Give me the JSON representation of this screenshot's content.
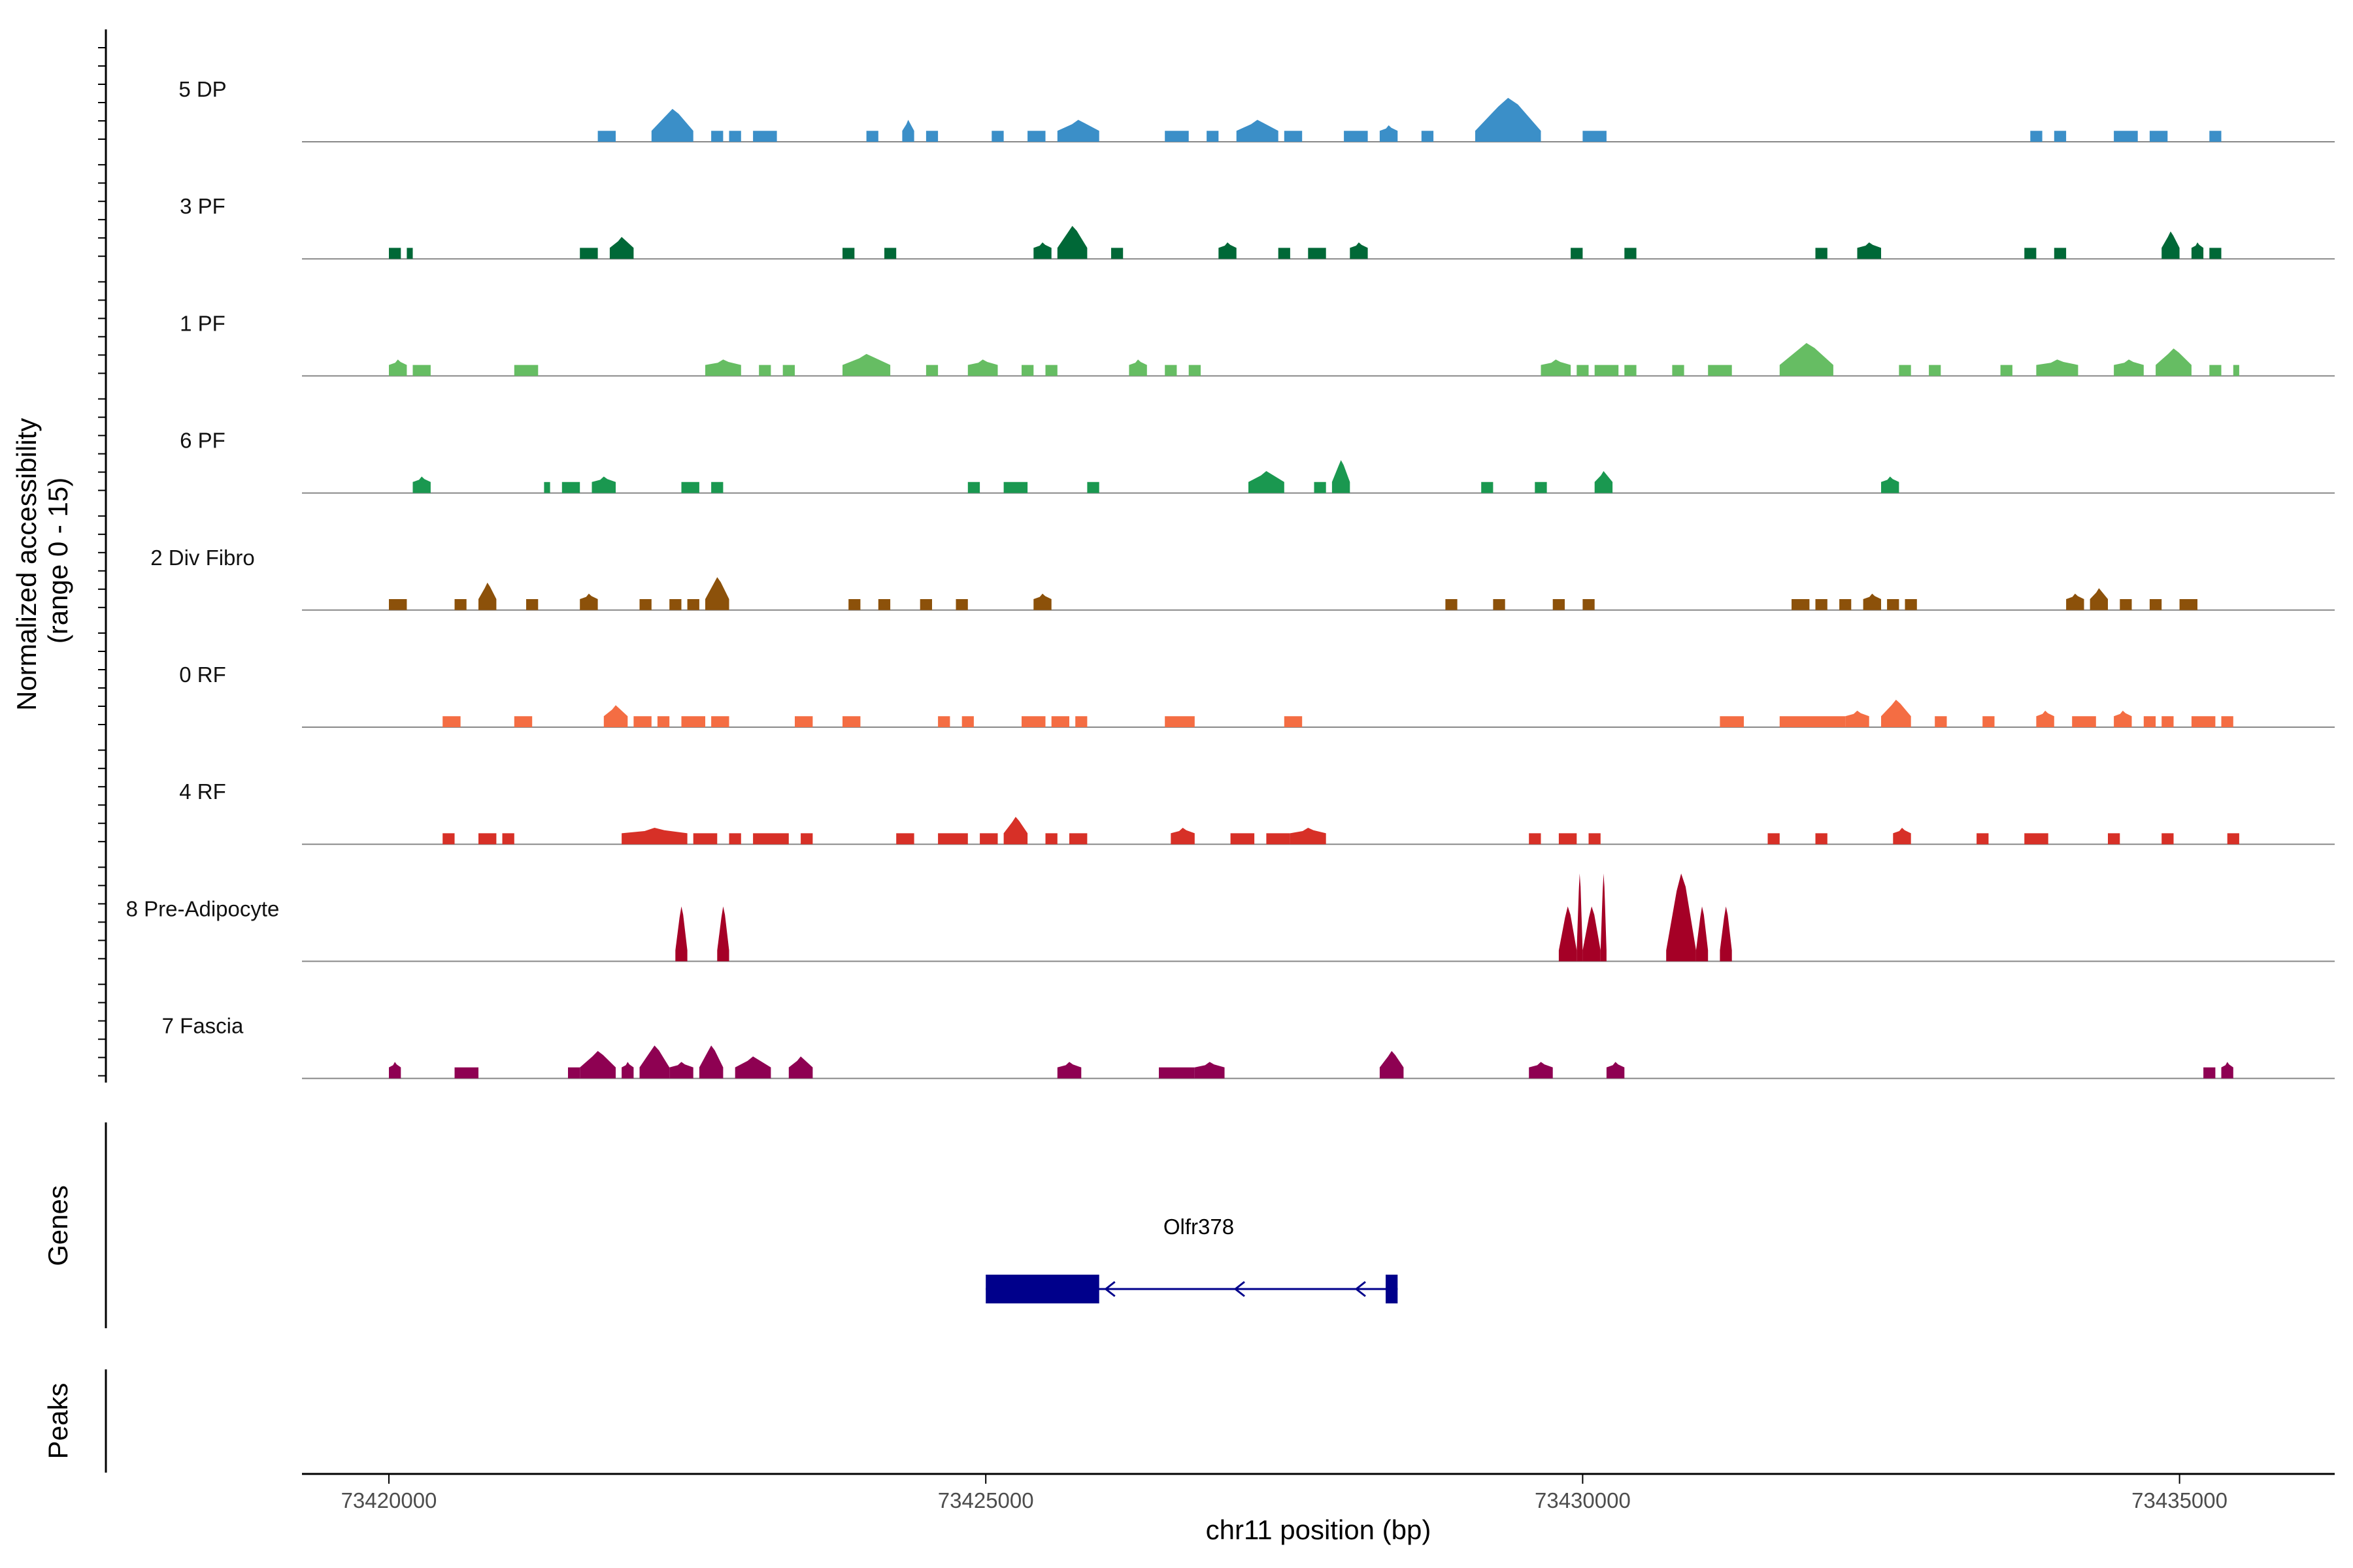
{
  "chart_data": {
    "type": "area",
    "title": "",
    "ylabel": "Normalized accessibility\n(range 0 - 15)",
    "y_range": [
      0,
      15
    ],
    "xlabel": "chr11 position (bp)",
    "xlim": [
      73418500,
      73436500
    ],
    "x_ticks": [
      73420000,
      73425000,
      73430000,
      73435000
    ],
    "x_tick_labels": [
      "73420000",
      "73425000",
      "73430000",
      "73435000"
    ],
    "series": [
      {
        "name": "5 DP",
        "color": "#3B8FC8",
        "peaks": [
          [
            73421750,
            73421900,
            2
          ],
          [
            73422200,
            73422550,
            6
          ],
          [
            73422700,
            73422800,
            2
          ],
          [
            73422850,
            73422950,
            2
          ],
          [
            73423050,
            73423250,
            2
          ],
          [
            73424000,
            73424100,
            2
          ],
          [
            73424300,
            73424400,
            4
          ],
          [
            73424500,
            73424600,
            2
          ],
          [
            73425050,
            73425150,
            2
          ],
          [
            73425350,
            73425500,
            2
          ],
          [
            73425600,
            73425950,
            4
          ],
          [
            73426500,
            73426700,
            2
          ],
          [
            73426850,
            73426950,
            2
          ],
          [
            73427100,
            73427450,
            4
          ],
          [
            73427500,
            73427650,
            2
          ],
          [
            73428000,
            73428200,
            2
          ],
          [
            73428300,
            73428450,
            3
          ],
          [
            73428650,
            73428750,
            2
          ],
          [
            73429100,
            73429650,
            8
          ],
          [
            73430000,
            73430200,
            2
          ],
          [
            73433750,
            73433850,
            2
          ],
          [
            73433950,
            73434050,
            2
          ],
          [
            73434450,
            73434650,
            2
          ],
          [
            73434750,
            73434900,
            2
          ],
          [
            73435250,
            73435350,
            2
          ]
        ]
      },
      {
        "name": "3 PF",
        "color": "#006837",
        "peaks": [
          [
            73420000,
            73420100,
            2
          ],
          [
            73420150,
            73420200,
            2
          ],
          [
            73421600,
            73421750,
            2
          ],
          [
            73421850,
            73422050,
            4
          ],
          [
            73423800,
            73423900,
            2
          ],
          [
            73424150,
            73424250,
            2
          ],
          [
            73425400,
            73425550,
            3
          ],
          [
            73425600,
            73425850,
            6
          ],
          [
            73426050,
            73426150,
            2
          ],
          [
            73426950,
            73427100,
            3
          ],
          [
            73427450,
            73427550,
            2
          ],
          [
            73427700,
            73427850,
            2
          ],
          [
            73428050,
            73428200,
            3
          ],
          [
            73429900,
            73430000,
            2
          ],
          [
            73430350,
            73430450,
            2
          ],
          [
            73431950,
            73432050,
            2
          ],
          [
            73432300,
            73432500,
            3
          ],
          [
            73433700,
            73433800,
            2
          ],
          [
            73433950,
            73434050,
            2
          ],
          [
            73434850,
            73435000,
            5
          ],
          [
            73435100,
            73435200,
            3
          ],
          [
            73435250,
            73435350,
            2
          ]
        ]
      },
      {
        "name": "1 PF",
        "color": "#66BD63",
        "peaks": [
          [
            73420000,
            73420150,
            3
          ],
          [
            73420200,
            73420350,
            2
          ],
          [
            73421050,
            73421250,
            2
          ],
          [
            73422650,
            73422950,
            3
          ],
          [
            73423100,
            73423200,
            2
          ],
          [
            73423300,
            73423400,
            2
          ],
          [
            73423800,
            73424200,
            4
          ],
          [
            73424500,
            73424600,
            2
          ],
          [
            73424850,
            73425100,
            3
          ],
          [
            73425300,
            73425400,
            2
          ],
          [
            73425500,
            73425600,
            2
          ],
          [
            73426200,
            73426350,
            3
          ],
          [
            73426500,
            73426600,
            2
          ],
          [
            73426700,
            73426800,
            2
          ],
          [
            73429650,
            73429900,
            3
          ],
          [
            73429950,
            73430050,
            2
          ],
          [
            73430100,
            73430300,
            2
          ],
          [
            73430350,
            73430450,
            2
          ],
          [
            73430750,
            73430850,
            2
          ],
          [
            73431050,
            73431250,
            2
          ],
          [
            73431650,
            73432100,
            6
          ],
          [
            73432650,
            73432750,
            2
          ],
          [
            73432900,
            73433000,
            2
          ],
          [
            73433500,
            73433600,
            2
          ],
          [
            73433800,
            73434150,
            3
          ],
          [
            73434450,
            73434700,
            3
          ],
          [
            73434800,
            73435100,
            5
          ],
          [
            73435250,
            73435350,
            2
          ],
          [
            73435450,
            73435500,
            2
          ]
        ]
      },
      {
        "name": "6 PF",
        "color": "#1A9850",
        "peaks": [
          [
            73420200,
            73420350,
            3
          ],
          [
            73421300,
            73421350,
            2
          ],
          [
            73421450,
            73421600,
            2
          ],
          [
            73421700,
            73421900,
            3
          ],
          [
            73422450,
            73422600,
            2
          ],
          [
            73422700,
            73422800,
            2
          ],
          [
            73424850,
            73424950,
            2
          ],
          [
            73425150,
            73425350,
            2
          ],
          [
            73425850,
            73425950,
            2
          ],
          [
            73427200,
            73427500,
            4
          ],
          [
            73427750,
            73427850,
            2
          ],
          [
            73427900,
            73428050,
            6
          ],
          [
            73429150,
            73429250,
            2
          ],
          [
            73429600,
            73429700,
            2
          ],
          [
            73430100,
            73430250,
            4
          ],
          [
            73432500,
            73432650,
            3
          ]
        ]
      },
      {
        "name": "2 Div Fibro",
        "color": "#8C510A",
        "peaks": [
          [
            73420000,
            73420150,
            2
          ],
          [
            73420550,
            73420650,
            2
          ],
          [
            73420750,
            73420900,
            5
          ],
          [
            73421150,
            73421250,
            2
          ],
          [
            73421600,
            73421750,
            3
          ],
          [
            73422100,
            73422200,
            2
          ],
          [
            73422350,
            73422450,
            2
          ],
          [
            73422500,
            73422600,
            2
          ],
          [
            73422650,
            73422850,
            6
          ],
          [
            73423850,
            73423950,
            2
          ],
          [
            73424100,
            73424200,
            2
          ],
          [
            73424450,
            73424550,
            2
          ],
          [
            73424750,
            73424850,
            2
          ],
          [
            73425400,
            73425550,
            3
          ],
          [
            73428850,
            73428950,
            2
          ],
          [
            73429250,
            73429350,
            2
          ],
          [
            73429750,
            73429850,
            2
          ],
          [
            73430000,
            73430100,
            2
          ],
          [
            73431750,
            73431900,
            2
          ],
          [
            73431950,
            73432050,
            2
          ],
          [
            73432150,
            73432250,
            2
          ],
          [
            73432350,
            73432500,
            3
          ],
          [
            73432550,
            73432650,
            2
          ],
          [
            73432700,
            73432800,
            2
          ],
          [
            73434050,
            73434200,
            3
          ],
          [
            73434250,
            73434400,
            4
          ],
          [
            73434500,
            73434600,
            2
          ],
          [
            73434750,
            73434850,
            2
          ],
          [
            73435000,
            73435150,
            2
          ]
        ]
      },
      {
        "name": "0 RF",
        "color": "#F46D43",
        "peaks": [
          [
            73420450,
            73420600,
            2
          ],
          [
            73421050,
            73421200,
            2
          ],
          [
            73421800,
            73422000,
            4
          ],
          [
            73422050,
            73422200,
            2
          ],
          [
            73422250,
            73422350,
            2
          ],
          [
            73422450,
            73422650,
            2
          ],
          [
            73422700,
            73422850,
            2
          ],
          [
            73423400,
            73423550,
            2
          ],
          [
            73423800,
            73423950,
            2
          ],
          [
            73424600,
            73424700,
            2
          ],
          [
            73424800,
            73424900,
            2
          ],
          [
            73425300,
            73425500,
            2
          ],
          [
            73425550,
            73425700,
            2
          ],
          [
            73425750,
            73425850,
            2
          ],
          [
            73426500,
            73426750,
            2
          ],
          [
            73427500,
            73427650,
            2
          ],
          [
            73431150,
            73431350,
            2
          ],
          [
            73431650,
            73431950,
            2
          ],
          [
            73431950,
            73432200,
            2
          ],
          [
            73432200,
            73432400,
            3
          ],
          [
            73432500,
            73432750,
            5
          ],
          [
            73432950,
            73433050,
            2
          ],
          [
            73433350,
            73433450,
            2
          ],
          [
            73433800,
            73433950,
            3
          ],
          [
            73434100,
            73434300,
            2
          ],
          [
            73434450,
            73434600,
            3
          ],
          [
            73434700,
            73434800,
            2
          ],
          [
            73434850,
            73434950,
            2
          ],
          [
            73435100,
            73435300,
            2
          ],
          [
            73435350,
            73435450,
            2
          ]
        ]
      },
      {
        "name": "4 RF",
        "color": "#D73027",
        "peaks": [
          [
            73420450,
            73420550,
            2
          ],
          [
            73420750,
            73420900,
            2
          ],
          [
            73420950,
            73421050,
            2
          ],
          [
            73421950,
            73422500,
            3
          ],
          [
            73422550,
            73422750,
            2
          ],
          [
            73422850,
            73422950,
            2
          ],
          [
            73423050,
            73423350,
            2
          ],
          [
            73423450,
            73423550,
            2
          ],
          [
            73424250,
            73424400,
            2
          ],
          [
            73424600,
            73424850,
            2
          ],
          [
            73424950,
            73425100,
            2
          ],
          [
            73425150,
            73425350,
            5
          ],
          [
            73425500,
            73425600,
            2
          ],
          [
            73425700,
            73425850,
            2
          ],
          [
            73426550,
            73426750,
            3
          ],
          [
            73427050,
            73427250,
            2
          ],
          [
            73427350,
            73427550,
            2
          ],
          [
            73427550,
            73427850,
            3
          ],
          [
            73429550,
            73429650,
            2
          ],
          [
            73429800,
            73429950,
            2
          ],
          [
            73430050,
            73430150,
            2
          ],
          [
            73431550,
            73431650,
            2
          ],
          [
            73431950,
            73432050,
            2
          ],
          [
            73432600,
            73432750,
            3
          ],
          [
            73433300,
            73433400,
            2
          ],
          [
            73433700,
            73433900,
            2
          ],
          [
            73434400,
            73434500,
            2
          ],
          [
            73434850,
            73434950,
            2
          ],
          [
            73435400,
            73435500,
            2
          ]
        ]
      },
      {
        "name": "8 Pre-Adipocyte",
        "color": "#A50026",
        "peaks": [
          [
            73422400,
            73422500,
            10
          ],
          [
            73422750,
            73422850,
            10
          ],
          [
            73429800,
            73429950,
            10
          ],
          [
            73429950,
            73430000,
            16
          ],
          [
            73430000,
            73430150,
            10
          ],
          [
            73430150,
            73430200,
            16
          ],
          [
            73430700,
            73430950,
            16
          ],
          [
            73430950,
            73431050,
            10
          ],
          [
            73431150,
            73431250,
            10
          ]
        ]
      },
      {
        "name": "7 Fascia",
        "color": "#8E0152",
        "peaks": [
          [
            73420000,
            73420100,
            3
          ],
          [
            73420550,
            73420750,
            2
          ],
          [
            73421500,
            73421600,
            2
          ],
          [
            73421600,
            73421900,
            5
          ],
          [
            73421950,
            73422050,
            3
          ],
          [
            73422100,
            73422350,
            6
          ],
          [
            73422350,
            73422550,
            3
          ],
          [
            73422600,
            73422800,
            6
          ],
          [
            73422900,
            73423200,
            4
          ],
          [
            73423350,
            73423550,
            4
          ],
          [
            73425600,
            73425800,
            3
          ],
          [
            73426450,
            73426750,
            2
          ],
          [
            73426750,
            73427000,
            3
          ],
          [
            73428300,
            73428500,
            5
          ],
          [
            73429550,
            73429750,
            3
          ],
          [
            73430200,
            73430350,
            3
          ],
          [
            73435200,
            73435300,
            2
          ],
          [
            73435350,
            73435450,
            3
          ]
        ]
      }
    ],
    "genes_panel_label": "Genes",
    "peaks_panel_label": "Peaks",
    "gene": {
      "name": "Olfr378",
      "color": "#00008B",
      "strand": "-",
      "start": 73425000,
      "end": 73428450,
      "exons": [
        [
          73425000,
          73425950
        ],
        [
          73428350,
          73428450
        ]
      ]
    }
  }
}
